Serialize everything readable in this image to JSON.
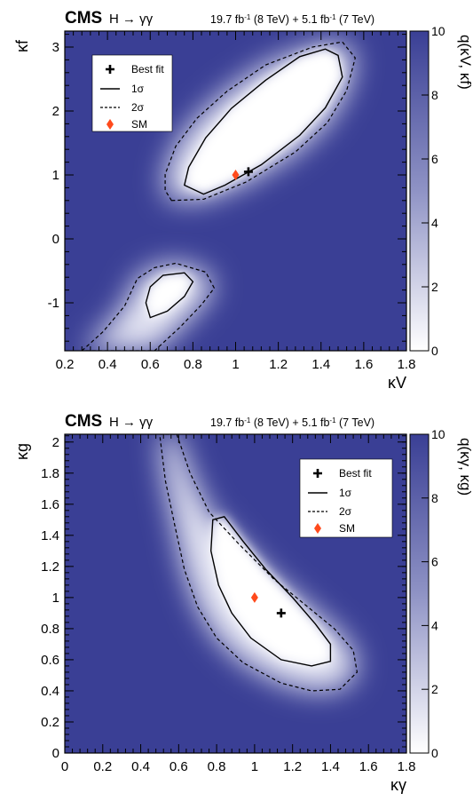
{
  "chart_data": [
    {
      "type": "heatmap",
      "title": "CMS",
      "subtitle": "H → γγ",
      "lumi": {
        "a": "19.7 fb",
        "a_sup": "-1",
        "a_rest": " (8 TeV) + 5.1 fb",
        "b_sup": "-1",
        "b_rest": " (7 TeV)"
      },
      "xlabel": "κV",
      "ylabel": "κf",
      "zlabel": "q(κV, κf)",
      "xlim": [
        0.2,
        1.8
      ],
      "ylim": [
        -1.75,
        3.25
      ],
      "zlim": [
        0,
        10
      ],
      "x_ticks": [
        0.2,
        0.4,
        0.6,
        0.8,
        1,
        1.2,
        1.4,
        1.6,
        1.8
      ],
      "y_ticks": [
        -1,
        0,
        1,
        2,
        3
      ],
      "z_ticks": [
        0,
        2,
        4,
        6,
        8,
        10
      ],
      "best_fit": {
        "x": 1.06,
        "y": 1.05
      },
      "sm": {
        "x": 1.0,
        "y": 1.0
      },
      "contour_1sigma": [
        [
          0.85,
          0.7
        ],
        [
          0.95,
          0.84
        ],
        [
          1.12,
          1.16
        ],
        [
          1.3,
          1.62
        ],
        [
          1.42,
          2.05
        ],
        [
          1.5,
          2.53
        ],
        [
          1.48,
          2.87
        ],
        [
          1.42,
          2.97
        ],
        [
          1.3,
          2.85
        ],
        [
          1.14,
          2.48
        ],
        [
          0.98,
          2.04
        ],
        [
          0.86,
          1.58
        ],
        [
          0.78,
          1.12
        ],
        [
          0.76,
          0.84
        ]
      ],
      "contour_2sigma": [
        [
          0.7,
          0.6
        ],
        [
          0.85,
          0.62
        ],
        [
          1.05,
          0.89
        ],
        [
          1.28,
          1.36
        ],
        [
          1.43,
          1.82
        ],
        [
          1.52,
          2.32
        ],
        [
          1.56,
          2.83
        ],
        [
          1.5,
          3.08
        ],
        [
          1.36,
          3.0
        ],
        [
          1.14,
          2.72
        ],
        [
          0.96,
          2.31
        ],
        [
          0.82,
          1.89
        ],
        [
          0.72,
          1.45
        ],
        [
          0.67,
          1.01
        ],
        [
          0.67,
          0.76
        ]
      ],
      "lower_1sigma": [
        [
          0.6,
          -1.23
        ],
        [
          0.58,
          -1.0
        ],
        [
          0.6,
          -0.75
        ],
        [
          0.66,
          -0.57
        ],
        [
          0.76,
          -0.53
        ],
        [
          0.8,
          -0.67
        ],
        [
          0.76,
          -0.9
        ],
        [
          0.68,
          -1.13
        ]
      ],
      "lower_2sigma": [
        [
          0.28,
          -1.75
        ],
        [
          0.38,
          -1.45
        ],
        [
          0.48,
          -1.05
        ],
        [
          0.54,
          -0.62
        ],
        [
          0.62,
          -0.45
        ],
        [
          0.72,
          -0.38
        ],
        [
          0.86,
          -0.52
        ],
        [
          0.9,
          -0.77
        ],
        [
          0.84,
          -1.03
        ],
        [
          0.74,
          -1.38
        ],
        [
          0.62,
          -1.75
        ]
      ],
      "legend": {
        "position": "top-left",
        "entries": [
          "Best fit",
          "1σ",
          "2σ",
          "SM"
        ]
      }
    },
    {
      "type": "heatmap",
      "title": "CMS",
      "subtitle": "H → γγ",
      "lumi": {
        "a": "19.7 fb",
        "a_sup": "-1",
        "a_rest": " (8 TeV) + 5.1 fb",
        "b_sup": "-1",
        "b_rest": " (7 TeV)"
      },
      "xlabel": "κγ",
      "ylabel": "κg",
      "zlabel": "q(κγ, κg)",
      "xlim": [
        0,
        1.8
      ],
      "ylim": [
        0,
        2.05
      ],
      "zlim": [
        0,
        10
      ],
      "x_ticks": [
        0,
        0.2,
        0.4,
        0.6,
        0.8,
        1,
        1.2,
        1.4,
        1.6,
        1.8
      ],
      "y_ticks": [
        0,
        0.2,
        0.4,
        0.6,
        0.8,
        1,
        1.2,
        1.4,
        1.6,
        1.8,
        2
      ],
      "z_ticks": [
        0,
        2,
        4,
        6,
        8,
        10
      ],
      "best_fit": {
        "x": 1.14,
        "y": 0.9
      },
      "sm": {
        "x": 1.0,
        "y": 1.0
      },
      "contour_1sigma": [
        [
          0.78,
          1.5
        ],
        [
          0.84,
          1.52
        ],
        [
          0.94,
          1.36
        ],
        [
          1.06,
          1.18
        ],
        [
          1.2,
          1.0
        ],
        [
          1.32,
          0.83
        ],
        [
          1.4,
          0.7
        ],
        [
          1.4,
          0.59
        ],
        [
          1.3,
          0.56
        ],
        [
          1.14,
          0.6
        ],
        [
          0.98,
          0.74
        ],
        [
          0.88,
          0.9
        ],
        [
          0.81,
          1.08
        ],
        [
          0.77,
          1.3
        ]
      ],
      "contour_2sigma": [
        [
          0.59,
          2.05
        ],
        [
          0.66,
          1.8
        ],
        [
          0.76,
          1.55
        ],
        [
          0.92,
          1.34
        ],
        [
          1.1,
          1.12
        ],
        [
          1.28,
          0.94
        ],
        [
          1.42,
          0.8
        ],
        [
          1.52,
          0.66
        ],
        [
          1.54,
          0.52
        ],
        [
          1.45,
          0.41
        ],
        [
          1.3,
          0.4
        ],
        [
          1.14,
          0.45
        ],
        [
          0.94,
          0.58
        ],
        [
          0.8,
          0.74
        ],
        [
          0.7,
          0.94
        ],
        [
          0.63,
          1.18
        ],
        [
          0.58,
          1.46
        ],
        [
          0.53,
          1.75
        ],
        [
          0.5,
          2.05
        ]
      ],
      "legend": {
        "position": "top-right",
        "entries": [
          "Best fit",
          "1σ",
          "2σ",
          "SM"
        ]
      }
    }
  ]
}
